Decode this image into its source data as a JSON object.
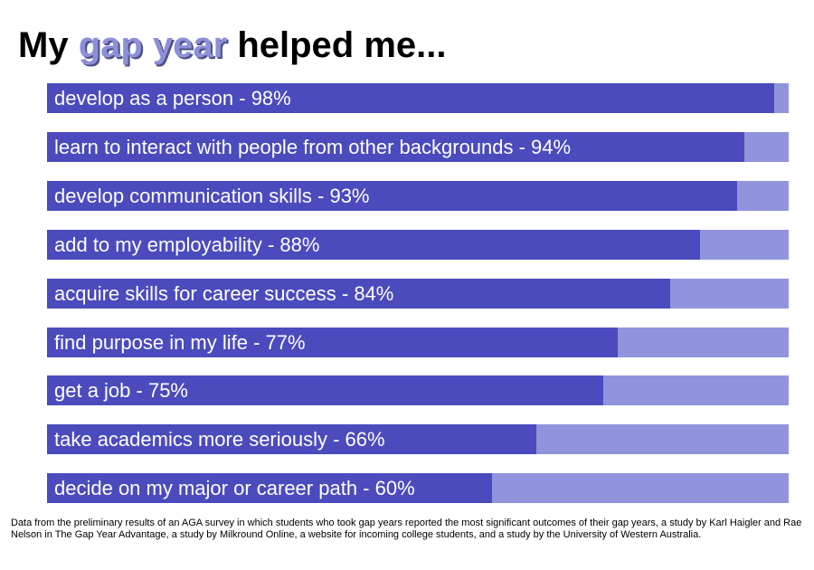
{
  "title": {
    "before": "My ",
    "highlight": "gap year",
    "after": " helped me..."
  },
  "colors": {
    "fill": "#4b4bbd",
    "track": "#9194dd",
    "title_highlight": "#8e8fda",
    "label_text": "#ffffff"
  },
  "chart_data": {
    "type": "bar",
    "orientation": "horizontal",
    "categories": [
      "develop as a person - 98%",
      "learn to interact with people from other backgrounds - 94%",
      "develop communication skills - 93%",
      "add to my employability - 88%",
      "acquire skills for career success - 84%",
      "find purpose in my life - 77%",
      "get a job - 75%",
      "take academics more seriously - 66%",
      "decide on my major or career path - 60%"
    ],
    "values": [
      98,
      94,
      93,
      88,
      84,
      77,
      75,
      66,
      60
    ],
    "xlim": [
      0,
      100
    ],
    "grid": false
  },
  "footnote": "Data from the preliminary results of an AGA survey in which students who took gap years reported the most significant outcomes of their gap years, a study by Karl Haigler and Rae Nelson in The Gap Year Advantage,  a study by Milkround Online, a website for incoming college students, and a study by the University of Western Australia."
}
